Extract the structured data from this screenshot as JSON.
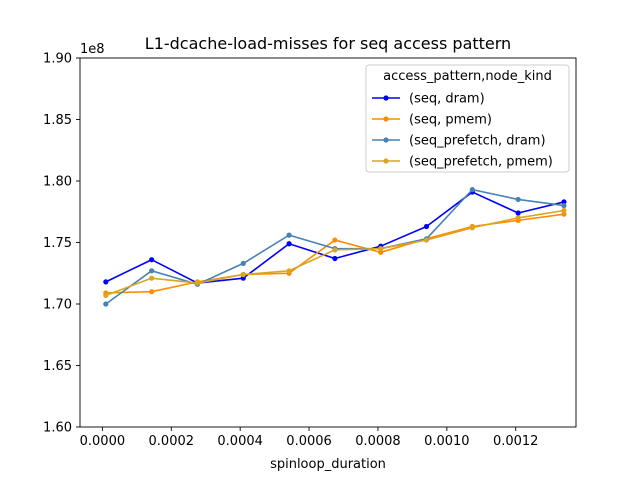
{
  "chart_data": {
    "type": "line",
    "title": "L1-dcache-load-misses for seq access pattern",
    "xlabel": "spinloop_duration",
    "ylabel": "",
    "y_offset_label": "1e8",
    "xlim": [
      -6.5e-05,
      0.001375
    ],
    "ylim": [
      160000000,
      190000000
    ],
    "x_ticks": [
      0,
      0.0002,
      0.0004,
      0.0006,
      0.0008,
      0.001,
      0.0012
    ],
    "x_tick_labels": [
      "0.0000",
      "0.0002",
      "0.0004",
      "0.0006",
      "0.0008",
      "0.0010",
      "0.0012"
    ],
    "y_ticks": [
      160000000,
      165000000,
      170000000,
      175000000,
      180000000,
      185000000,
      190000000
    ],
    "y_tick_labels": [
      "1.60",
      "1.65",
      "1.70",
      "1.75",
      "1.80",
      "1.85",
      "1.90"
    ],
    "grid": false,
    "legend": {
      "title": "access_pattern,node_kind",
      "placement": "top-right"
    },
    "x": [
      1e-05,
      0.000143,
      0.000276,
      0.000409,
      0.000542,
      0.000675,
      0.000808,
      0.000941,
      0.001074,
      0.001207,
      0.00134
    ],
    "series": [
      {
        "name": "(seq, dram)",
        "color": "#0000ff",
        "values": [
          171800000,
          173600000,
          171700000,
          172100000,
          174900000,
          173700000,
          174700000,
          176300000,
          179100000,
          177400000,
          178300000
        ]
      },
      {
        "name": "(seq, pmem)",
        "color": "#ff8c00",
        "values": [
          170900000,
          171000000,
          171800000,
          172400000,
          172500000,
          175200000,
          174200000,
          175300000,
          176300000,
          176800000,
          177300000
        ]
      },
      {
        "name": "(seq_prefetch, dram)",
        "color": "#4682b4",
        "values": [
          170000000,
          172700000,
          171600000,
          173300000,
          175600000,
          174500000,
          174500000,
          175300000,
          179300000,
          178500000,
          178000000
        ]
      },
      {
        "name": "(seq_prefetch, pmem)",
        "color": "#daa520",
        "values": [
          170700000,
          172100000,
          171700000,
          172400000,
          172700000,
          174400000,
          174500000,
          175200000,
          176200000,
          177000000,
          177600000
        ]
      }
    ]
  }
}
